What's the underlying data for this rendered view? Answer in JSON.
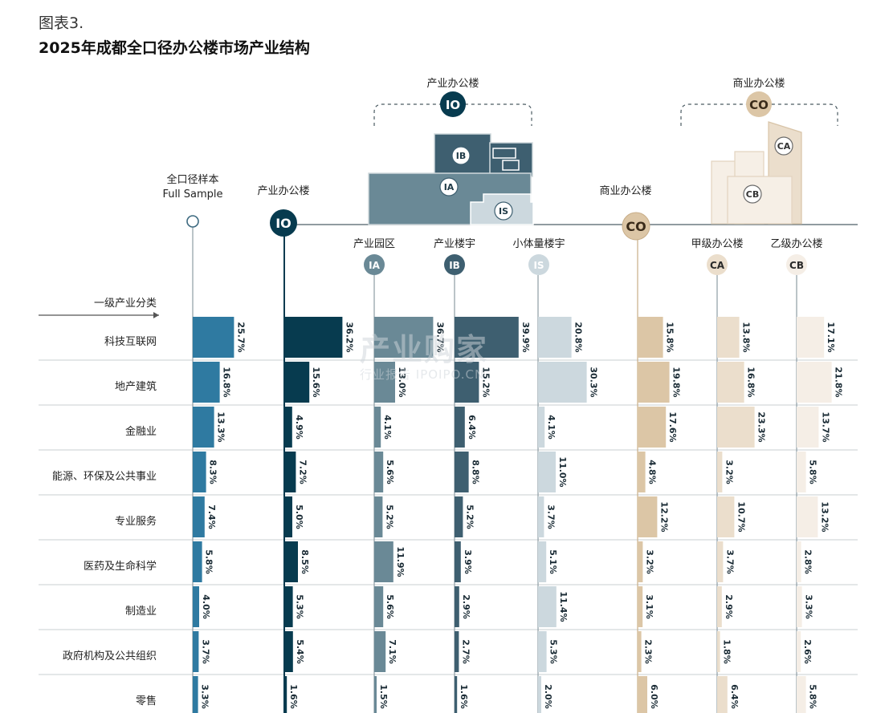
{
  "figure_label": "图表3.",
  "title": "2025年成都全口径办公楼市场产业结构",
  "watermark": {
    "main": "产业购家",
    "sub": "行业报告 IPOIPO.CN"
  },
  "header": {
    "io_group": {
      "label": "产业办公楼",
      "badge": "IO"
    },
    "co_group": {
      "label": "商业办公楼",
      "badge": "CO"
    },
    "building_badges": {
      "ib": "IB",
      "ia": "IA",
      "is": "IS",
      "ca": "CA",
      "cb": "CB"
    }
  },
  "legend_arrow_label": "一级产业分类",
  "colors": {
    "full": "#2f7aa1",
    "io": "#073b4f",
    "ia": "#6a8996",
    "ib": "#3e5f70",
    "is": "#ccd8de",
    "co": "#dcc6a6",
    "ca": "#ebdecc",
    "cb": "#f5eee6",
    "line": "#6b7a80"
  },
  "chart_data": {
    "type": "bar",
    "orientation": "horizontal",
    "unit": "%",
    "categories": [
      "科技互联网",
      "地产建筑",
      "金融业",
      "能源、环保及公共事业",
      "专业服务",
      "医药及生命科学",
      "制造业",
      "政府机构及公共组织",
      "零售"
    ],
    "series": [
      {
        "key": "full",
        "name": "全口径样本",
        "name_en": "Full Sample",
        "badge": "",
        "values": [
          25.7,
          16.8,
          13.3,
          8.3,
          7.4,
          5.8,
          4.0,
          3.7,
          3.3
        ]
      },
      {
        "key": "io",
        "name": "产业办公楼",
        "name_en": "",
        "badge": "IO",
        "values": [
          36.2,
          15.6,
          4.9,
          7.2,
          5.0,
          8.5,
          5.3,
          5.4,
          1.6
        ]
      },
      {
        "key": "ia",
        "name": "产业园区",
        "name_en": "",
        "badge": "IA",
        "values": [
          36.7,
          13.0,
          4.1,
          5.6,
          5.2,
          11.9,
          5.6,
          7.1,
          1.5
        ]
      },
      {
        "key": "ib",
        "name": "产业楼宇",
        "name_en": "",
        "badge": "IB",
        "values": [
          39.9,
          15.2,
          6.4,
          8.8,
          5.2,
          3.9,
          2.9,
          2.7,
          1.6
        ]
      },
      {
        "key": "is",
        "name": "小体量楼宇",
        "name_en": "",
        "badge": "IS",
        "values": [
          20.8,
          30.3,
          4.1,
          11.0,
          3.7,
          5.1,
          11.4,
          5.3,
          2.0
        ]
      },
      {
        "key": "co",
        "name": "商业办公楼",
        "name_en": "",
        "badge": "CO",
        "values": [
          15.8,
          19.8,
          17.6,
          4.8,
          12.2,
          3.2,
          3.1,
          2.3,
          6.0
        ]
      },
      {
        "key": "ca",
        "name": "甲级办公楼",
        "name_en": "",
        "badge": "CA",
        "values": [
          13.8,
          16.8,
          23.3,
          3.2,
          10.7,
          3.7,
          2.9,
          1.8,
          6.4
        ]
      },
      {
        "key": "cb",
        "name": "乙级办公楼",
        "name_en": "",
        "badge": "CB",
        "values": [
          17.1,
          21.8,
          13.7,
          5.8,
          13.2,
          2.8,
          3.3,
          2.6,
          5.8
        ]
      }
    ]
  }
}
